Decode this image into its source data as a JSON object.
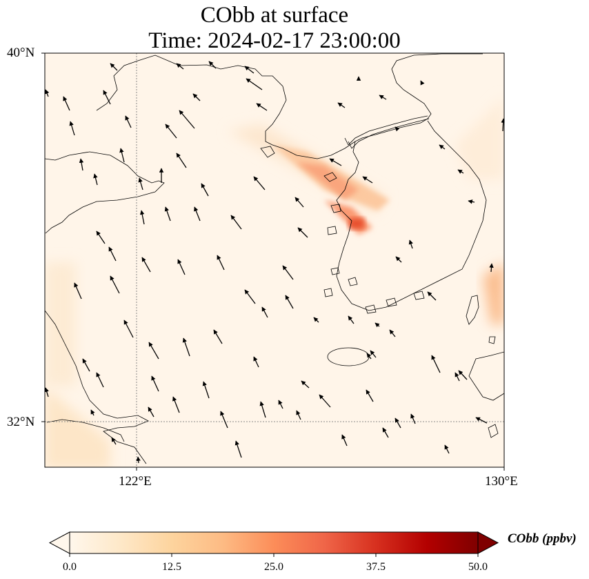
{
  "title": {
    "line1": "CObb at surface",
    "line2": "Time: 2024-02-17 23:00:00"
  },
  "map": {
    "lat_labels": [
      "40°N",
      "32°N"
    ],
    "lon_labels": [
      "122°E",
      "130°E"
    ],
    "extent": {
      "lon_min": 120,
      "lon_max": 130,
      "lat_min": 31,
      "lat_max": 40
    },
    "gridlines": {
      "lons": [
        122
      ],
      "lats": [
        32
      ]
    }
  },
  "colorbar": {
    "label": "CObb (ppbv)",
    "ticks": [
      "0.0",
      "12.5",
      "25.0",
      "37.5",
      "50.0"
    ],
    "min": 0,
    "max": 50,
    "extend": "both",
    "colormap": "OrRd",
    "colors": [
      "#fff7ec",
      "#fee8c8",
      "#fdd49e",
      "#fdbb84",
      "#fc8d59",
      "#ef6548",
      "#d7301f",
      "#b30000",
      "#7f0000"
    ]
  }
}
